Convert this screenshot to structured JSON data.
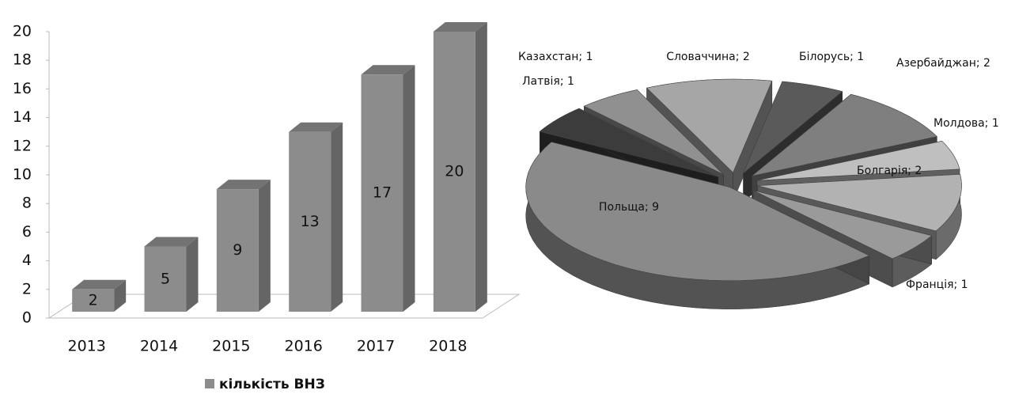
{
  "chart_data": [
    {
      "type": "bar",
      "categories": [
        "2013",
        "2014",
        "2015",
        "2016",
        "2017",
        "2018"
      ],
      "series": [
        {
          "name": "кількість ВНЗ",
          "color": "#8c8c8c",
          "values": [
            2,
            5,
            9,
            13,
            17,
            20
          ]
        }
      ],
      "ylim": [
        0,
        20
      ],
      "yticks": [
        0,
        2,
        4,
        6,
        8,
        10,
        12,
        14,
        16,
        18,
        20
      ],
      "legend": "bottom"
    },
    {
      "type": "pie",
      "values": [
        2,
        1,
        2,
        1,
        2,
        1,
        9,
        1,
        1
      ],
      "value_labels": [
        "Словаччина; 2",
        "Білорусь; 1",
        "Азербайджан; 2",
        "Молдова; 1",
        "Болгарія; 2",
        "Франція; 1",
        "Польща; 9",
        "Латвія; 1",
        "Казахстан; 1"
      ],
      "colors": [
        "#a6a6a6",
        "#5a5a5a",
        "#7f7f7f",
        "#bfbfbf",
        "#b2b2b2",
        "#9a9a9a",
        "#8a8a8a",
        "#3c3c3c",
        "#909090"
      ]
    }
  ]
}
